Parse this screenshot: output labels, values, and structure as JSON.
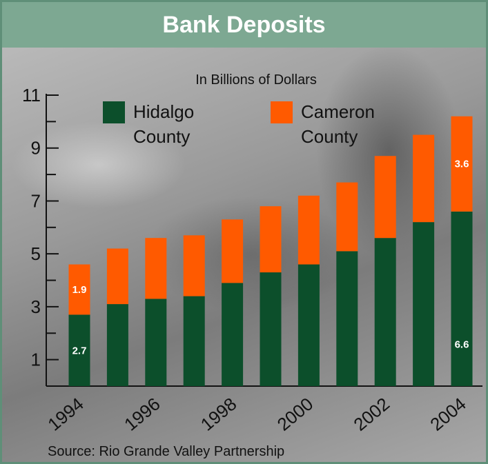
{
  "title": "Bank Deposits",
  "source": "Source: Rio Grande Valley Partnership",
  "chart_data": {
    "type": "bar",
    "stacked": true,
    "subtitle": "In Billions of Dollars",
    "categories": [
      "1994",
      "1995",
      "1996",
      "1997",
      "1998",
      "1999",
      "2000",
      "2001",
      "2002",
      "2003",
      "2004"
    ],
    "x_tick_labels": [
      "1994",
      "1996",
      "1998",
      "2000",
      "2002",
      "2004"
    ],
    "y_tick_labels": [
      "1",
      "3",
      "5",
      "7",
      "9",
      "11"
    ],
    "ylim": [
      0,
      11
    ],
    "series": [
      {
        "name": "Hidalgo County",
        "color": "#0c4f2b",
        "values": [
          2.7,
          3.1,
          3.3,
          3.4,
          3.9,
          4.3,
          4.6,
          5.1,
          5.6,
          6.2,
          6.6
        ],
        "labels": [
          "2.7",
          "",
          "",
          "",
          "",
          "",
          "",
          "",
          "",
          "",
          "6.6"
        ]
      },
      {
        "name": "Cameron County",
        "color": "#ff5a00",
        "values": [
          1.9,
          2.1,
          2.3,
          2.3,
          2.4,
          2.5,
          2.6,
          2.6,
          3.1,
          3.3,
          3.6
        ],
        "labels": [
          "1.9",
          "",
          "",
          "",
          "",
          "",
          "",
          "",
          "",
          "",
          "3.6"
        ]
      }
    ],
    "legend": [
      {
        "text": [
          "Hidalgo",
          "County"
        ],
        "color": "#0c4f2b"
      },
      {
        "text": [
          "Cameron",
          "County"
        ],
        "color": "#ff5a00"
      }
    ],
    "legend_position": "top",
    "grid": false
  }
}
